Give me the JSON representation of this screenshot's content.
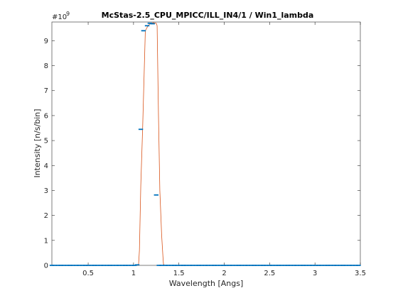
{
  "chart_data": {
    "type": "line",
    "title": "McStas-2.5_CPU_MPICC/ILL_IN4/1 / Win1_lambda",
    "xlabel": "Wavelength [Angs]",
    "ylabel": "Intensity [n/s/bin]",
    "y_exponent_label": "#10",
    "y_exponent": "9",
    "xlim": [
      0.1,
      3.5
    ],
    "ylim": [
      0,
      9.75
    ],
    "xticks": [
      0.5,
      1,
      1.5,
      2,
      2.5,
      3,
      3.5
    ],
    "xtick_labels": [
      "0.5",
      "1",
      "1.5",
      "2",
      "2.5",
      "3",
      "3.5"
    ],
    "yticks": [
      0,
      1,
      2,
      3,
      4,
      5,
      6,
      7,
      8,
      9
    ],
    "ytick_labels": [
      "0",
      "1",
      "2",
      "3",
      "4",
      "5",
      "6",
      "7",
      "8",
      "9"
    ],
    "grid": false,
    "series": [
      {
        "color": "#0072bd",
        "marker": "horizontal-bar",
        "x": [
          0.1,
          0.13,
          0.17,
          0.2,
          0.23,
          0.27,
          0.3,
          0.33,
          0.37,
          0.4,
          0.44,
          0.47,
          0.5,
          0.54,
          0.57,
          0.6,
          0.64,
          0.67,
          0.71,
          0.74,
          0.77,
          0.81,
          0.84,
          0.88,
          0.91,
          0.94,
          0.98,
          1.01,
          1.04,
          1.08,
          1.11,
          1.15,
          1.18,
          1.21,
          1.25,
          1.28,
          1.31,
          1.35,
          1.38,
          1.42,
          1.45,
          1.48,
          1.52,
          1.55,
          1.58,
          1.62,
          1.65,
          1.69,
          1.72,
          1.75,
          1.79,
          1.82,
          1.86,
          1.89,
          1.92,
          1.96,
          1.99,
          2.02,
          2.06,
          2.09,
          2.13,
          2.16,
          2.19,
          2.23,
          2.26,
          2.3,
          2.33,
          2.36,
          2.4,
          2.43,
          2.46,
          2.5,
          2.53,
          2.57,
          2.6,
          2.63,
          2.67,
          2.7,
          2.73,
          2.77,
          2.8,
          2.84,
          2.87,
          2.9,
          2.94,
          2.97,
          3.01,
          3.04,
          3.07,
          3.11,
          3.14,
          3.17,
          3.21,
          3.24,
          3.28,
          3.31,
          3.34,
          3.38,
          3.41,
          3.45,
          3.48
        ],
        "y": [
          0,
          0,
          0,
          0,
          0,
          0,
          0,
          0,
          0,
          0,
          0,
          0,
          0,
          0,
          0,
          0,
          0,
          0,
          0,
          0,
          0,
          0,
          0,
          0,
          0,
          0,
          0,
          0,
          0.02,
          5.45,
          9.4,
          9.6,
          9.7,
          9.68,
          2.82,
          0,
          0,
          0,
          0,
          0,
          0,
          0,
          0,
          0,
          0,
          0,
          0,
          0,
          0,
          0,
          0,
          0,
          0,
          0,
          0,
          0,
          0,
          0,
          0,
          0,
          0,
          0,
          0,
          0,
          0,
          0,
          0,
          0,
          0,
          0,
          0,
          0,
          0,
          0,
          0,
          0,
          0,
          0,
          0,
          0,
          0,
          0,
          0,
          0,
          0,
          0,
          0,
          0,
          0,
          0,
          0,
          0,
          0,
          0,
          0,
          0,
          0,
          0,
          0,
          0,
          0
        ]
      },
      {
        "color": "#d95319",
        "marker": "none",
        "x": [
          0.1,
          1.055,
          1.065,
          1.08,
          1.1,
          1.13,
          1.16,
          1.19,
          1.22,
          1.25,
          1.26,
          1.275,
          1.29,
          1.31,
          1.325,
          1.33,
          1.34,
          3.5
        ],
        "y": [
          0,
          0,
          0.6,
          3.2,
          5.45,
          9.4,
          9.6,
          9.7,
          9.72,
          9.7,
          9.6,
          6.0,
          3.0,
          1.2,
          0.3,
          0.05,
          0,
          0
        ]
      }
    ]
  }
}
